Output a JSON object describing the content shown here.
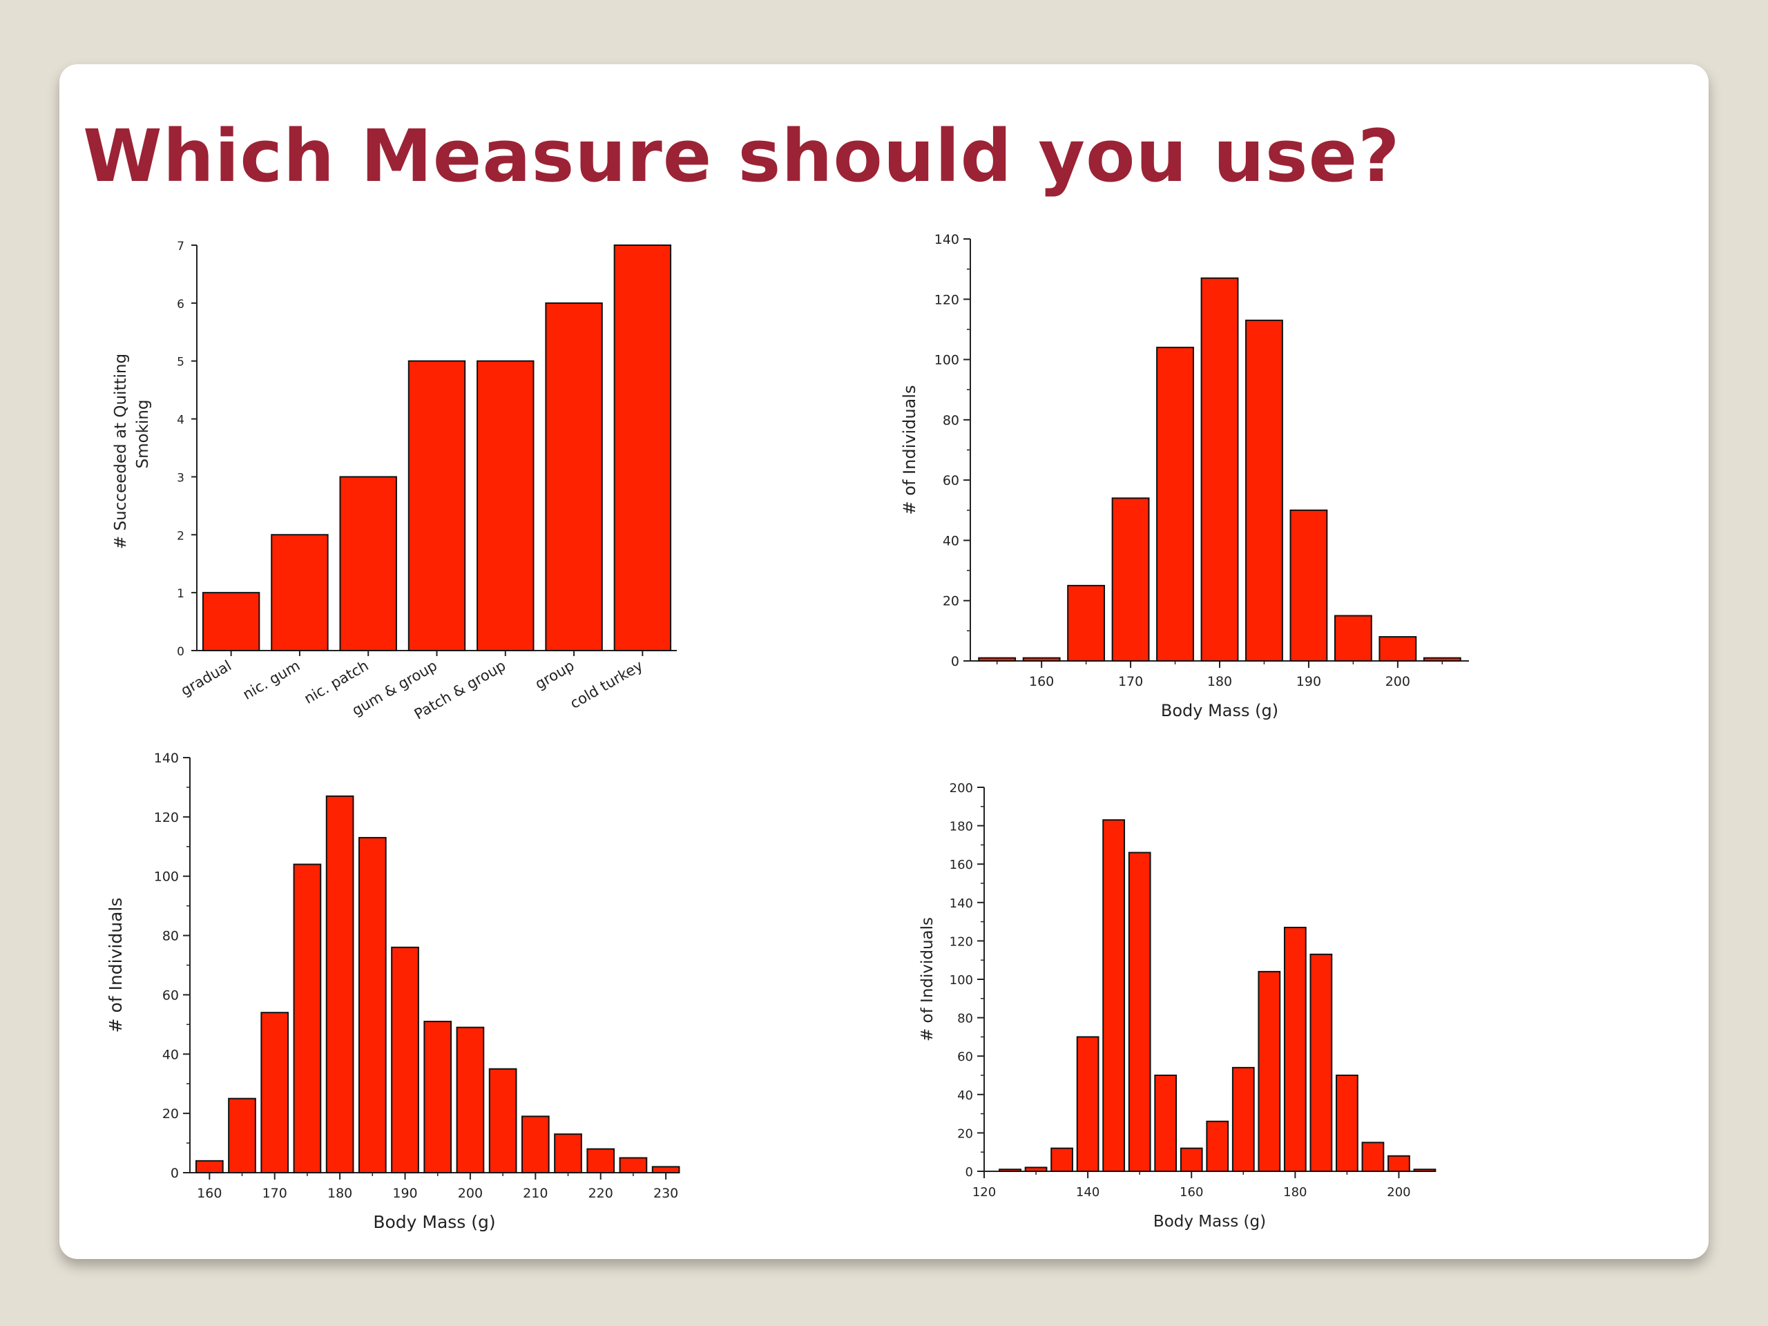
{
  "slide": {
    "title": "Which Measure should you use?",
    "colors": {
      "title": "#9b2335",
      "bar": "#ff2200",
      "background": "#e4dfd3"
    }
  },
  "chart_data": [
    {
      "type": "bar",
      "ylabel": "# Succeeded at Quitting Smoking",
      "ylabel_lines": [
        "# Succeeded at Quitting",
        "Smoking"
      ],
      "xlabel": "",
      "categories": [
        "gradual",
        "nic. gum",
        "nic. patch",
        "gum & group",
        "Patch & group",
        "group",
        "cold turkey"
      ],
      "values": [
        1,
        2,
        3,
        5,
        5,
        6,
        7
      ],
      "ylim": [
        0,
        7
      ],
      "yticks": [
        0,
        1,
        2,
        3,
        4,
        5,
        6,
        7
      ]
    },
    {
      "type": "bar",
      "xlabel": "Body Mass (g)",
      "ylabel": "# of Individuals",
      "x": [
        155,
        160,
        165,
        170,
        175,
        180,
        185,
        190,
        195,
        200,
        205
      ],
      "values": [
        1,
        1,
        25,
        54,
        104,
        127,
        113,
        50,
        15,
        8,
        1
      ],
      "xlim": [
        152,
        208
      ],
      "ylim": [
        0,
        140
      ],
      "xticks": [
        160,
        170,
        180,
        190,
        200
      ],
      "yticks": [
        0,
        20,
        40,
        60,
        80,
        100,
        120,
        140
      ]
    },
    {
      "type": "bar",
      "xlabel": "Body Mass (g)",
      "ylabel": "# of Individuals",
      "x": [
        160,
        165,
        170,
        175,
        180,
        185,
        190,
        195,
        200,
        205,
        210,
        215,
        220,
        225,
        230
      ],
      "values": [
        4,
        25,
        54,
        104,
        127,
        113,
        76,
        51,
        49,
        35,
        19,
        13,
        8,
        5,
        2
      ],
      "xlim": [
        157,
        232
      ],
      "ylim": [
        0,
        140
      ],
      "xticks": [
        160,
        170,
        180,
        190,
        200,
        210,
        220,
        230
      ],
      "yticks": [
        0,
        20,
        40,
        60,
        80,
        100,
        120,
        140
      ]
    },
    {
      "type": "bar",
      "xlabel": "Body Mass (g)",
      "ylabel": "# of Individuals",
      "x": [
        125,
        130,
        135,
        140,
        145,
        150,
        155,
        160,
        165,
        170,
        175,
        180,
        185,
        190,
        195,
        200,
        205
      ],
      "values": [
        1,
        2,
        12,
        70,
        183,
        166,
        50,
        12,
        26,
        54,
        104,
        127,
        113,
        50,
        15,
        8,
        1
      ],
      "xlim": [
        120,
        207
      ],
      "ylim": [
        0,
        200
      ],
      "xticks": [
        120,
        140,
        160,
        180,
        200
      ],
      "yticks": [
        0,
        20,
        40,
        60,
        80,
        100,
        120,
        140,
        160,
        180,
        200
      ]
    }
  ]
}
